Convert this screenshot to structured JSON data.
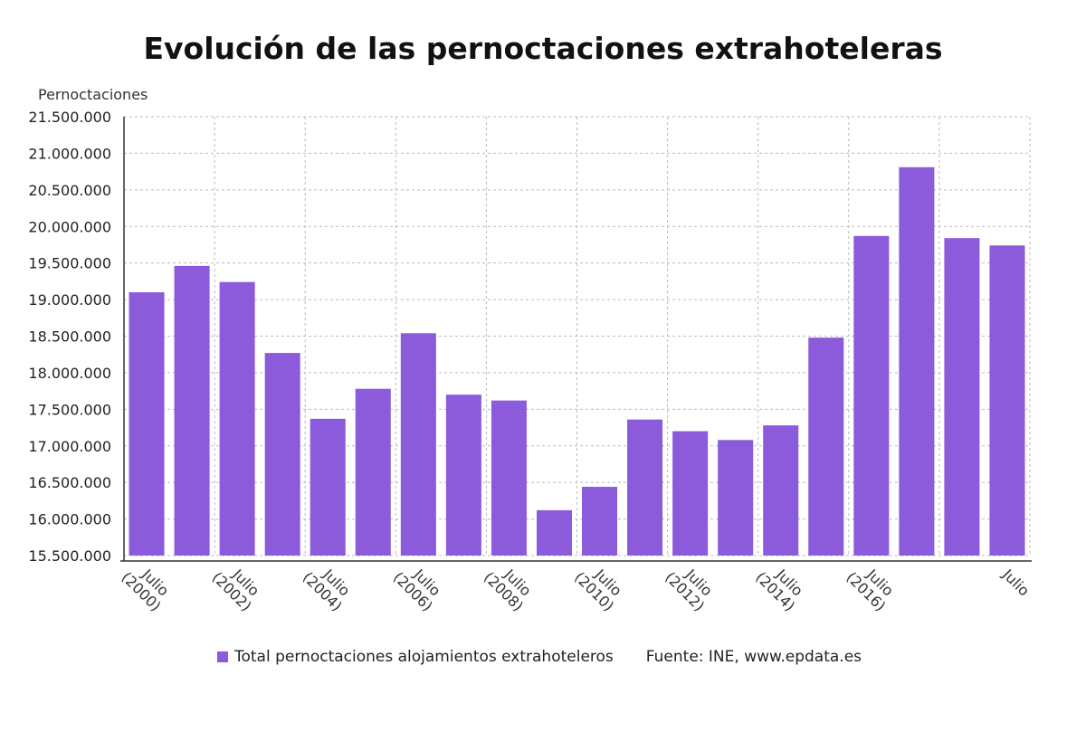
{
  "chart_data": {
    "type": "bar",
    "title": "Evolución de las pernoctaciones extrahoteleras",
    "ylabel": "Pernoctaciones",
    "xlabel": "",
    "ylim": [
      15500000,
      21500000
    ],
    "yticks": [
      15500000,
      16000000,
      16500000,
      17000000,
      17500000,
      18000000,
      18500000,
      19000000,
      19500000,
      20000000,
      20500000,
      21000000,
      21500000
    ],
    "ytick_labels": [
      "15.500.000",
      "16.000.000",
      "16.500.000",
      "17.000.000",
      "17.500.000",
      "18.000.000",
      "18.500.000",
      "19.000.000",
      "19.500.000",
      "20.000.000",
      "20.500.000",
      "21.000.000",
      "21.500.000"
    ],
    "categories": [
      "Julio (2000)",
      "",
      "Julio (2002)",
      "",
      "Julio (2004)",
      "",
      "Julio (2006)",
      "",
      "Julio (2008)",
      "",
      "Julio (2010)",
      "",
      "Julio (2012)",
      "",
      "Julio (2014)",
      "",
      "Julio (2016)",
      "",
      "",
      "Julio"
    ],
    "series": [
      {
        "name": "Total pernoctaciones alojamientos extrahoteleros",
        "color": "#8c5bdc",
        "values": [
          19100000,
          19460000,
          19240000,
          18270000,
          17370000,
          17780000,
          18540000,
          17700000,
          17620000,
          16120000,
          16440000,
          17360000,
          17200000,
          17080000,
          17280000,
          18480000,
          19870000,
          20810000,
          19840000,
          19740000
        ]
      }
    ],
    "grid": true,
    "legend_position": "bottom",
    "source": "Fuente: INE, www.epdata.es"
  },
  "colors": {
    "bar": "#8c5bdc",
    "grid": "#bbbbbb",
    "axis": "#333333"
  }
}
